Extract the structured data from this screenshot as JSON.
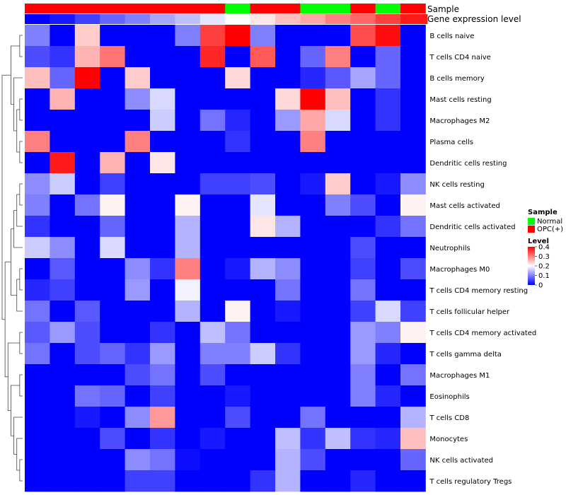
{
  "chart_data": {
    "type": "heatmap",
    "title": "",
    "annotation_rows": [
      {
        "label": "Sample",
        "values": [
          "OPC(+)",
          "OPC(+)",
          "OPC(+)",
          "OPC(+)",
          "OPC(+)",
          "OPC(+)",
          "OPC(+)",
          "OPC(+)",
          "Normal",
          "OPC(+)",
          "OPC(+)",
          "Normal",
          "Normal",
          "OPC(+)",
          "Normal",
          "OPC(+)"
        ]
      },
      {
        "label": "Gene expression level",
        "values": [
          0.0,
          0.02,
          0.05,
          0.08,
          0.1,
          0.13,
          0.15,
          0.18,
          0.2,
          0.22,
          0.25,
          0.27,
          0.3,
          0.32,
          0.35,
          0.38
        ]
      }
    ],
    "rows": [
      "B cells naive",
      "T cells CD4 naive",
      "B cells memory",
      "Mast cells resting",
      "Macrophages M2",
      "Plasma cells",
      "Dendritic cells resting",
      "NK cells resting",
      "Mast cells activated",
      "Dendritic cells activated",
      "Neutrophils",
      "Macrophages M0",
      "T cells CD4 memory resting",
      "T cells follicular helper",
      "T cells CD4 memory activated",
      "T cells gamma delta",
      "Macrophages M1",
      "Eosinophils",
      "T cells CD8",
      "Monocytes",
      "NK cells activated",
      "T cells regulatory  Tregs"
    ],
    "values": [
      [
        0.1,
        0.0,
        0.24,
        0.0,
        0.0,
        0.0,
        0.1,
        0.35,
        0.4,
        0.1,
        0.0,
        0.0,
        0.0,
        0.34,
        0.39,
        0.0
      ],
      [
        0.06,
        0.04,
        0.26,
        0.31,
        0.0,
        0.0,
        0.0,
        0.37,
        0.0,
        0.33,
        0.0,
        0.08,
        0.3,
        0.0,
        0.08,
        0.0
      ],
      [
        0.25,
        0.08,
        0.4,
        0.0,
        0.24,
        0.0,
        0.0,
        0.0,
        0.23,
        0.0,
        0.0,
        0.03,
        0.07,
        0.13,
        0.08,
        0.0
      ],
      [
        0.0,
        0.26,
        0.0,
        0.0,
        0.11,
        0.17,
        0.0,
        0.0,
        0.0,
        0.0,
        0.23,
        0.4,
        0.25,
        0.0,
        0.04,
        0.0
      ],
      [
        0.0,
        0.0,
        0.0,
        0.0,
        0.0,
        0.16,
        0.0,
        0.09,
        0.03,
        0.0,
        0.12,
        0.27,
        0.17,
        0.0,
        0.04,
        0.0
      ],
      [
        0.3,
        0.0,
        0.0,
        0.0,
        0.3,
        0.0,
        0.0,
        0.0,
        0.04,
        0.0,
        0.0,
        0.3,
        0.0,
        0.0,
        0.0,
        0.0
      ],
      [
        0.0,
        0.38,
        0.0,
        0.26,
        0.0,
        0.22,
        0.0,
        0.0,
        0.0,
        0.0,
        0.0,
        0.0,
        0.0,
        0.0,
        0.0,
        0.0
      ],
      [
        0.11,
        0.16,
        0.0,
        0.05,
        0.0,
        0.0,
        0.0,
        0.05,
        0.05,
        0.06,
        0.0,
        0.02,
        0.24,
        0.0,
        0.02,
        0.11
      ],
      [
        0.1,
        0.0,
        0.09,
        0.21,
        0.0,
        0.0,
        0.21,
        0.0,
        0.0,
        0.18,
        0.0,
        0.0,
        0.1,
        0.06,
        0.0,
        0.21
      ],
      [
        0.04,
        0.0,
        0.0,
        0.08,
        0.0,
        0.0,
        0.14,
        0.0,
        0.0,
        0.22,
        0.14,
        0.0,
        0.0,
        0.0,
        0.04,
        0.09
      ],
      [
        0.16,
        0.11,
        0.0,
        0.17,
        0.0,
        0.0,
        0.14,
        0.0,
        0.0,
        0.0,
        0.0,
        0.0,
        0.0,
        0.06,
        0.0,
        0.0
      ],
      [
        0.0,
        0.07,
        0.0,
        0.0,
        0.11,
        0.04,
        0.3,
        0.0,
        0.02,
        0.14,
        0.11,
        0.0,
        0.0,
        0.05,
        0.0,
        0.06
      ],
      [
        0.03,
        0.05,
        0.0,
        0.0,
        0.12,
        0.0,
        0.19,
        0.0,
        0.0,
        0.0,
        0.09,
        0.0,
        0.0,
        0.09,
        0.0,
        0.0
      ],
      [
        0.09,
        0.0,
        0.07,
        0.0,
        0.0,
        0.0,
        0.14,
        0.0,
        0.21,
        0.0,
        0.02,
        0.0,
        0.0,
        0.05,
        0.17,
        0.05
      ],
      [
        0.07,
        0.12,
        0.06,
        0.0,
        0.0,
        0.04,
        0.0,
        0.15,
        0.09,
        0.0,
        0.0,
        0.0,
        0.0,
        0.12,
        0.1,
        0.21
      ],
      [
        0.09,
        0.0,
        0.06,
        0.08,
        0.04,
        0.12,
        0.0,
        0.1,
        0.1,
        0.16,
        0.04,
        0.0,
        0.0,
        0.12,
        0.03,
        0.0
      ],
      [
        0.0,
        0.0,
        0.0,
        0.0,
        0.06,
        0.09,
        0.0,
        0.06,
        0.0,
        0.0,
        0.0,
        0.0,
        0.0,
        0.1,
        0.0,
        0.09
      ],
      [
        0.0,
        0.0,
        0.09,
        0.08,
        0.0,
        0.05,
        0.0,
        0.0,
        0.02,
        0.0,
        0.0,
        0.0,
        0.0,
        0.1,
        0.03,
        0.0
      ],
      [
        0.0,
        0.0,
        0.02,
        0.0,
        0.11,
        0.28,
        0.0,
        0.0,
        0.06,
        0.0,
        0.0,
        0.09,
        0.0,
        0.0,
        0.0,
        0.14
      ],
      [
        0.0,
        0.0,
        0.0,
        0.06,
        0.0,
        0.04,
        0.0,
        0.02,
        0.0,
        0.0,
        0.15,
        0.04,
        0.15,
        0.04,
        0.03,
        0.25
      ],
      [
        0.0,
        0.0,
        0.0,
        0.0,
        0.11,
        0.09,
        0.01,
        0.0,
        0.0,
        0.0,
        0.14,
        0.06,
        0.0,
        0.0,
        0.0,
        0.08
      ],
      [
        0.0,
        0.0,
        0.0,
        0.0,
        0.05,
        0.05,
        0.0,
        0.0,
        0.0,
        0.04,
        0.14,
        0.0,
        0.0,
        0.03,
        0.0,
        0.0
      ]
    ],
    "legends": [
      {
        "title": "Sample",
        "items": [
          {
            "label": "Normal",
            "color": "#00ff00"
          },
          {
            "label": "OPC(+)",
            "color": "#ff0000"
          }
        ]
      },
      {
        "title": "Level",
        "ticks": [
          "0",
          "0.1",
          "0.2",
          "0.3",
          "0.4"
        ],
        "range": [
          0,
          0.4
        ],
        "colors": [
          "#0000ff",
          "#ffffff",
          "#ff0000"
        ]
      }
    ],
    "legend_position": "right",
    "dendrogram": "rows-left"
  }
}
